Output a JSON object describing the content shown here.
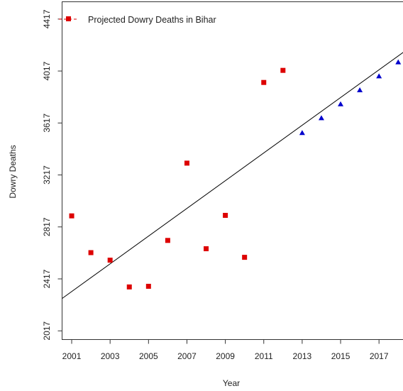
{
  "chart_data": {
    "type": "scatter",
    "xlabel": "Year",
    "ylabel": "Dowry Deaths",
    "xlim": [
      2000.5,
      2018.6
    ],
    "ylim": [
      1950,
      4550
    ],
    "x_ticks": [
      2001,
      2003,
      2005,
      2007,
      2009,
      2011,
      2013,
      2015,
      2017
    ],
    "y_ticks": [
      2017,
      2417,
      2817,
      3217,
      3617,
      4017,
      4417
    ],
    "grid": false,
    "legend_position": "top-left",
    "legend": [
      "Projected Dowry Deaths in Bihar"
    ],
    "series": [
      {
        "name": "",
        "marker": "square",
        "color": "#dd0000",
        "x": [
          2001,
          2002,
          2003,
          2004,
          2005,
          2006,
          2007,
          2008,
          2009,
          2010,
          2011,
          2012
        ],
        "y": [
          2902,
          2619,
          2561,
          2355,
          2360,
          2713,
          3308,
          2649,
          2906,
          2583,
          3929,
          4022
        ]
      },
      {
        "name": "",
        "marker": "triangle",
        "color": "#0000cc",
        "x": [
          2013,
          2014,
          2015,
          2016,
          2017,
          2018
        ],
        "y": [
          3541,
          3655,
          3762,
          3870,
          3977,
          4085
        ]
      }
    ],
    "trend_line": {
      "color": "#000000",
      "x": [
        2000.5,
        2018.6
      ],
      "y": [
        2266,
        4197
      ]
    }
  }
}
